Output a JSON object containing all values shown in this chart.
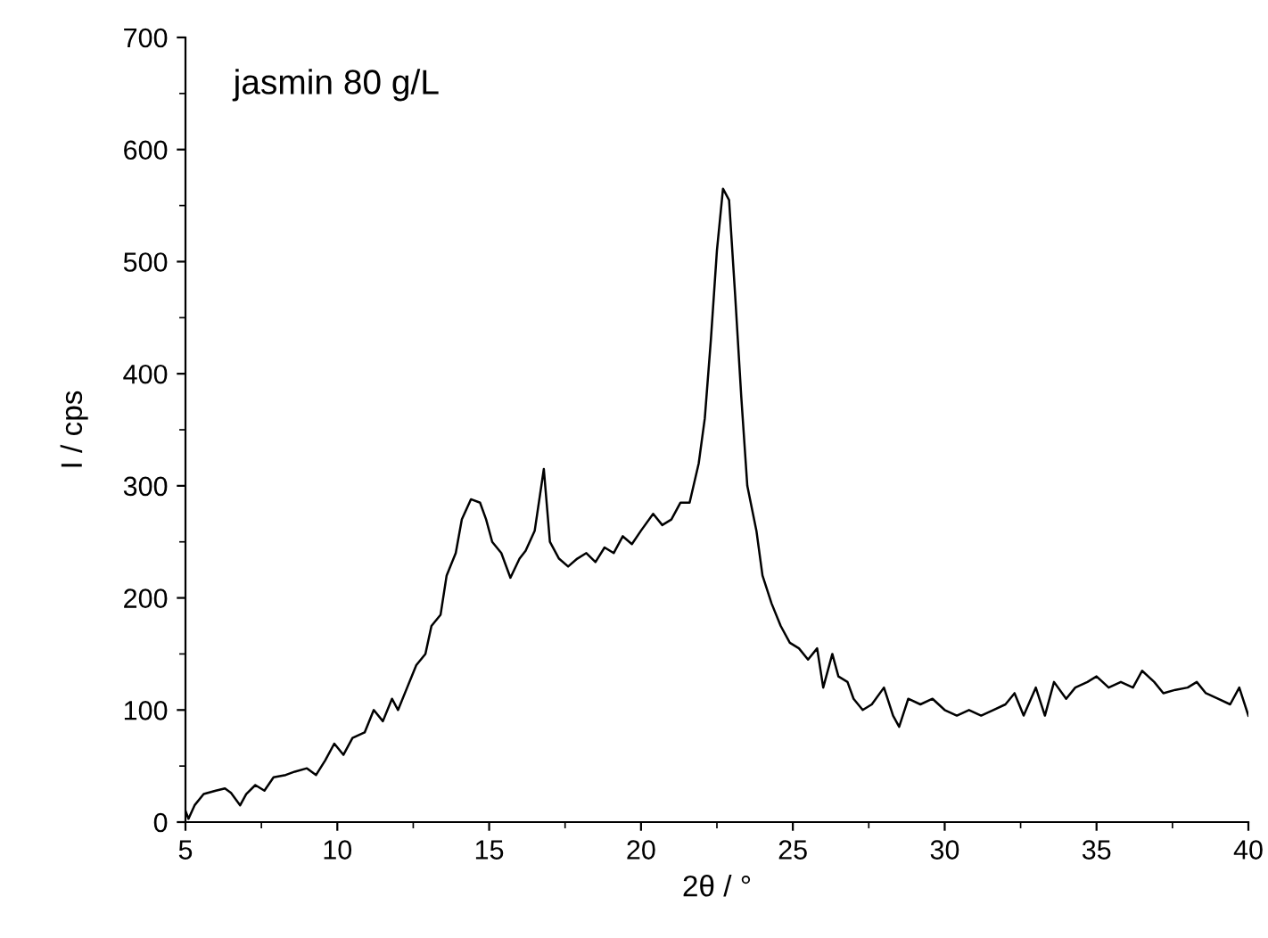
{
  "chart_data": {
    "type": "line",
    "xlabel": "2θ / °",
    "ylabel": "I / cps",
    "annotations": [
      "jasmin 80 g/L"
    ],
    "xlim": [
      5,
      40
    ],
    "ylim": [
      0,
      700
    ],
    "xticks": [
      5,
      10,
      15,
      20,
      25,
      30,
      35,
      40
    ],
    "yticks": [
      0,
      100,
      200,
      300,
      400,
      500,
      600,
      700
    ],
    "grid": false,
    "legend": false,
    "series": [
      {
        "color": "#000000",
        "x": [
          5.0,
          5.1,
          5.3,
          5.6,
          6.0,
          6.3,
          6.5,
          6.8,
          7.0,
          7.3,
          7.6,
          7.9,
          8.3,
          8.6,
          9.0,
          9.3,
          9.6,
          9.9,
          10.2,
          10.5,
          10.9,
          11.2,
          11.5,
          11.8,
          12.0,
          12.3,
          12.6,
          12.9,
          13.1,
          13.4,
          13.6,
          13.9,
          14.1,
          14.4,
          14.7,
          14.9,
          15.1,
          15.4,
          15.7,
          16.0,
          16.2,
          16.5,
          16.8,
          17.0,
          17.3,
          17.6,
          17.9,
          18.2,
          18.5,
          18.8,
          19.1,
          19.4,
          19.7,
          20.0,
          20.4,
          20.7,
          21.0,
          21.3,
          21.6,
          21.9,
          22.1,
          22.3,
          22.5,
          22.7,
          22.9,
          23.1,
          23.3,
          23.5,
          23.8,
          24.0,
          24.3,
          24.6,
          24.9,
          25.2,
          25.5,
          25.8,
          26.0,
          26.3,
          26.5,
          26.8,
          27.0,
          27.3,
          27.6,
          28.0,
          28.3,
          28.5,
          28.8,
          29.2,
          29.6,
          30.0,
          30.4,
          30.8,
          31.2,
          31.6,
          32.0,
          32.3,
          32.6,
          33.0,
          33.3,
          33.6,
          34.0,
          34.3,
          34.7,
          35.0,
          35.4,
          35.8,
          36.2,
          36.5,
          36.9,
          37.2,
          37.6,
          38.0,
          38.3,
          38.6,
          39.0,
          39.4,
          39.7,
          40.0
        ],
        "values": [
          10,
          3,
          15,
          25,
          28,
          30,
          26,
          15,
          25,
          33,
          28,
          40,
          42,
          45,
          48,
          42,
          55,
          70,
          60,
          75,
          80,
          100,
          90,
          110,
          100,
          120,
          140,
          150,
          175,
          185,
          220,
          240,
          270,
          288,
          285,
          270,
          250,
          240,
          218,
          235,
          242,
          260,
          315,
          250,
          235,
          228,
          235,
          240,
          232,
          245,
          240,
          255,
          248,
          260,
          275,
          265,
          270,
          285,
          285,
          320,
          360,
          430,
          510,
          565,
          555,
          470,
          380,
          300,
          260,
          220,
          195,
          175,
          160,
          155,
          145,
          155,
          120,
          150,
          130,
          125,
          110,
          100,
          105,
          120,
          95,
          85,
          110,
          105,
          110,
          100,
          95,
          100,
          95,
          100,
          105,
          115,
          95,
          120,
          95,
          125,
          110,
          120,
          125,
          130,
          120,
          125,
          120,
          135,
          125,
          115,
          118,
          120,
          125,
          115,
          110,
          105,
          120,
          95
        ]
      }
    ]
  }
}
